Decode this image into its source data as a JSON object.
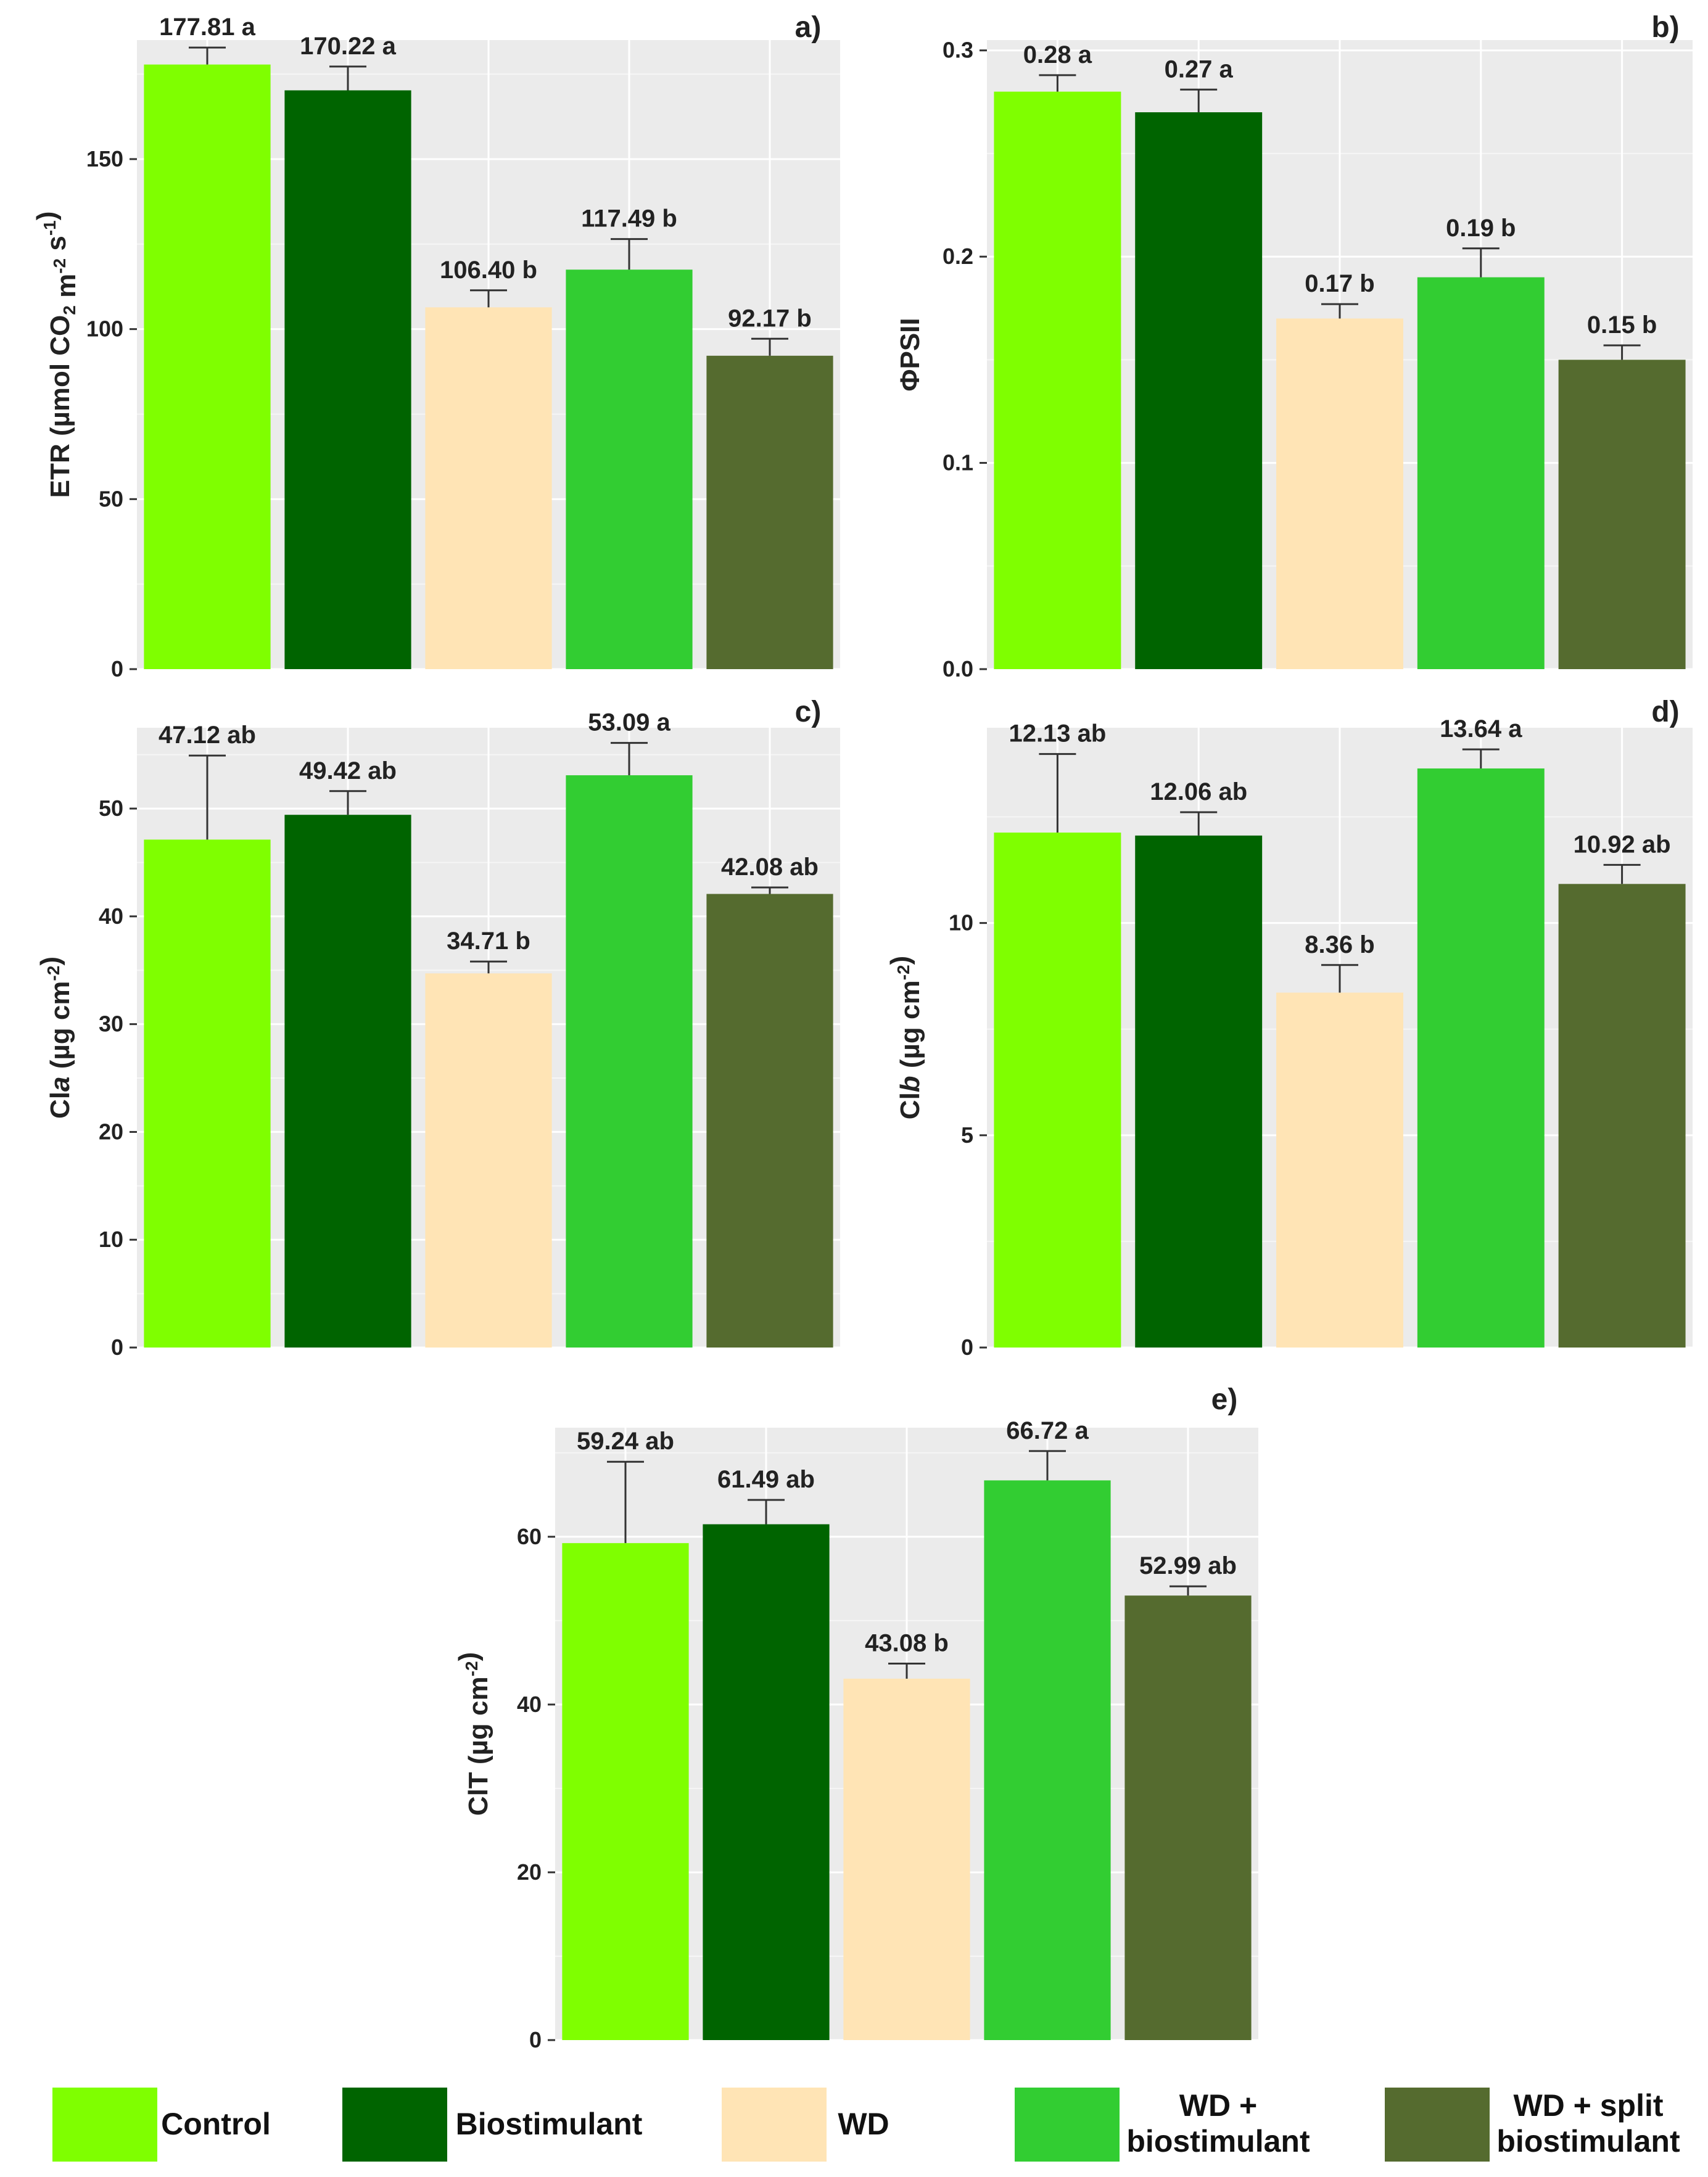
{
  "series_colors": [
    "#7fff00",
    "#006400",
    "#ffe4b5",
    "#32cd32",
    "#556b2f"
  ],
  "legend": {
    "control": "Control",
    "biostimulant": "Biostimulant",
    "wd": "WD",
    "wd_bio_line1": "WD +",
    "wd_bio_line2": "biostimulant",
    "wd_split_line1": "WD + split",
    "wd_split_line2": "biostimulant"
  },
  "chart_data": [
    {
      "type": "bar",
      "panel": "a)",
      "ylabel": "ETR (µmol CO2 m-2 s-1)",
      "ylim": [
        0,
        185
      ],
      "yticks": [
        0,
        50,
        100,
        150
      ],
      "ytick_labels": [
        "0",
        "50",
        "100",
        "150"
      ],
      "categories": [
        "Control",
        "Biostimulant",
        "WD",
        "WD + biostimulant",
        "WD + split biostimulant"
      ],
      "values": [
        177.81,
        170.22,
        106.4,
        117.49,
        92.17
      ],
      "errors": [
        5,
        7,
        5,
        9,
        5
      ],
      "labels": [
        "177.81 a",
        "170.22 a",
        "106.40 b",
        "117.49 b",
        "92.17 b"
      ]
    },
    {
      "type": "bar",
      "panel": "b)",
      "ylabel": "ΦPSII",
      "ylim": [
        0,
        0.305
      ],
      "yticks": [
        0,
        0.1,
        0.2,
        0.3
      ],
      "ytick_labels": [
        "0.0",
        "0.1",
        "0.2",
        "0.3"
      ],
      "categories": [
        "Control",
        "Biostimulant",
        "WD",
        "WD + biostimulant",
        "WD + split biostimulant"
      ],
      "values": [
        0.28,
        0.27,
        0.17,
        0.19,
        0.15
      ],
      "errors": [
        0.008,
        0.011,
        0.007,
        0.014,
        0.007
      ],
      "labels": [
        "0.28 a",
        "0.27 a",
        "0.17 b",
        "0.19 b",
        "0.15 b"
      ]
    },
    {
      "type": "bar",
      "panel": "c)",
      "ylabel": "Cla (µg cm-2)",
      "ylim": [
        0,
        57.5
      ],
      "yticks": [
        0,
        10,
        20,
        30,
        40,
        50
      ],
      "ytick_labels": [
        "0",
        "10",
        "20",
        "30",
        "40",
        "50"
      ],
      "categories": [
        "Control",
        "Biostimulant",
        "WD",
        "WD + biostimulant",
        "WD + split biostimulant"
      ],
      "values": [
        47.12,
        49.42,
        34.71,
        53.09,
        42.08
      ],
      "errors": [
        7.8,
        2.2,
        1.1,
        3.0,
        0.6
      ],
      "labels": [
        "47.12 ab",
        "49.42 ab",
        "34.71 b",
        "53.09 a",
        "42.08 ab"
      ]
    },
    {
      "type": "bar",
      "panel": "d)",
      "ylabel": "Clb (µg cm-2)",
      "ylim": [
        0,
        14.6
      ],
      "yticks": [
        0,
        5,
        10
      ],
      "ytick_labels": [
        "0",
        "5",
        "10"
      ],
      "categories": [
        "Control",
        "Biostimulant",
        "WD",
        "WD + biostimulant",
        "WD + split biostimulant"
      ],
      "values": [
        12.13,
        12.06,
        8.36,
        13.64,
        10.92
      ],
      "errors": [
        1.85,
        0.55,
        0.65,
        0.45,
        0.45
      ],
      "labels": [
        "12.13 ab",
        "12.06 ab",
        "8.36 b",
        "13.64 a",
        "10.92 ab"
      ]
    },
    {
      "type": "bar",
      "panel": "e)",
      "ylabel": "ClT (µg cm-2)",
      "ylim": [
        0,
        73
      ],
      "yticks": [
        0,
        20,
        40,
        60
      ],
      "ytick_labels": [
        "0",
        "20",
        "40",
        "60"
      ],
      "categories": [
        "Control",
        "Biostimulant",
        "WD",
        "WD + biostimulant",
        "WD + split biostimulant"
      ],
      "values": [
        59.24,
        61.49,
        43.08,
        66.72,
        52.99
      ],
      "errors": [
        9.7,
        2.9,
        1.8,
        3.5,
        1.1
      ],
      "labels": [
        "59.24 ab",
        "61.49 ab",
        "43.08 b",
        "66.72 a",
        "52.99 ab"
      ]
    }
  ]
}
